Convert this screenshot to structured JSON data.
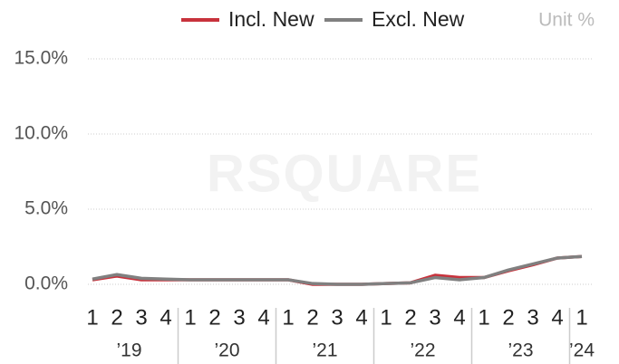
{
  "chart_data": {
    "type": "line",
    "unit_label": "Unit %",
    "watermark": "RSQUARE",
    "categories": [
      "1",
      "2",
      "3",
      "4",
      "1",
      "2",
      "3",
      "4",
      "1",
      "2",
      "3",
      "4",
      "1",
      "2",
      "3",
      "4",
      "1",
      "2",
      "3",
      "4",
      "1"
    ],
    "years": [
      "’19",
      "’20",
      "’21",
      "’22",
      "’23",
      "’24"
    ],
    "series": [
      {
        "name": "Incl. New",
        "color": "#c8323c",
        "values": [
          0.3,
          0.55,
          0.3,
          0.3,
          0.3,
          0.3,
          0.3,
          0.3,
          0.3,
          0.0,
          0.0,
          0.0,
          0.05,
          0.1,
          0.6,
          0.45,
          0.45,
          0.9,
          1.3,
          1.75,
          1.85
        ]
      },
      {
        "name": "Excl. New",
        "color": "#808080",
        "values": [
          0.35,
          0.65,
          0.4,
          0.35,
          0.3,
          0.3,
          0.3,
          0.3,
          0.3,
          0.05,
          0.0,
          0.0,
          0.05,
          0.1,
          0.45,
          0.3,
          0.45,
          0.95,
          1.35,
          1.75,
          1.85
        ]
      }
    ],
    "ylim": [
      0,
      15
    ],
    "yticks": [
      {
        "value": 0,
        "label": "0.0%"
      },
      {
        "value": 5,
        "label": "5.0%"
      },
      {
        "value": 10,
        "label": "10.0%"
      },
      {
        "value": 15,
        "label": "15.0%"
      }
    ],
    "grid": true
  }
}
